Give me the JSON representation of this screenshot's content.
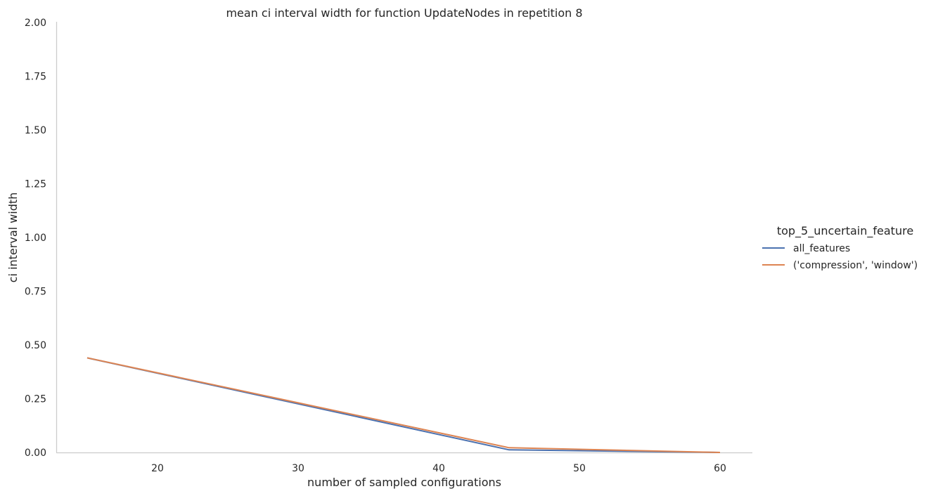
{
  "chart_data": {
    "type": "line",
    "title": "mean ci interval width for function UpdateNodes in repetition 8",
    "xlabel": "number of sampled configurations",
    "ylabel": "ci interval width",
    "xlim": [
      12.8,
      62.3
    ],
    "ylim": [
      0,
      2
    ],
    "xticks": [
      "20",
      "30",
      "40",
      "50",
      "60"
    ],
    "yticks": [
      "0.00",
      "0.25",
      "0.50",
      "0.75",
      "1.00",
      "1.25",
      "1.50",
      "1.75",
      "2.00"
    ],
    "grid": false,
    "legend": {
      "title": "top_5_uncertain_feature",
      "placement": "right"
    },
    "series": [
      {
        "name": "all_features",
        "color": "#4c72b0",
        "x": [
          15,
          45,
          60
        ],
        "y": [
          0.44,
          0.012,
          0.0
        ]
      },
      {
        "name": "('compression', 'window')",
        "color": "#dd8452",
        "x": [
          15,
          45,
          60
        ],
        "y": [
          0.44,
          0.022,
          0.0
        ]
      }
    ]
  }
}
